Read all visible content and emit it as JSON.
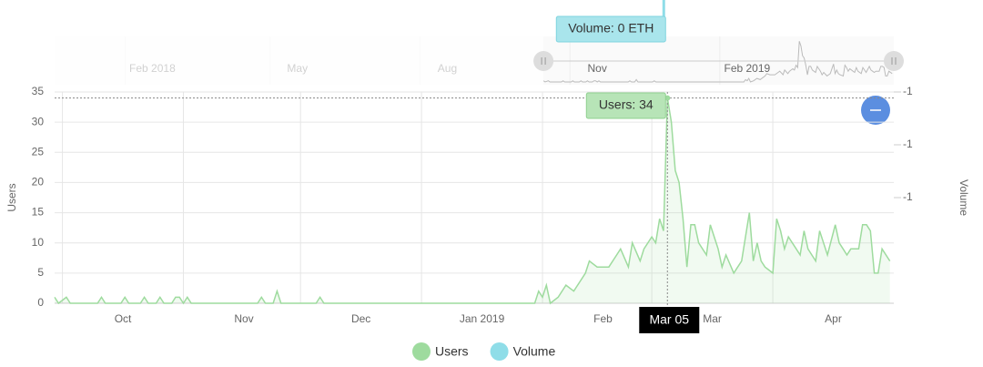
{
  "chart_data": {
    "type": "line",
    "x": [
      -2,
      -1,
      1,
      2,
      9,
      10,
      11,
      15,
      16,
      17,
      20,
      21,
      22,
      24,
      25,
      26,
      28,
      29,
      30,
      31,
      32,
      33,
      50,
      51,
      52,
      54,
      55,
      56,
      65,
      66,
      67,
      121,
      122,
      123,
      124,
      125,
      127,
      129,
      131,
      134,
      135,
      137,
      140,
      142,
      143,
      145,
      146,
      148,
      149,
      151,
      152,
      153,
      154,
      155,
      156,
      157,
      158,
      159,
      160,
      161,
      162,
      163,
      165,
      166,
      167,
      168,
      169,
      170,
      172,
      173,
      174,
      176,
      177,
      178,
      179,
      180,
      182,
      183,
      184,
      185,
      186,
      188,
      189,
      190,
      191,
      193,
      194,
      195,
      196,
      198,
      199,
      200,
      201,
      202,
      204,
      205,
      206,
      207,
      208,
      209,
      210,
      212
    ],
    "series": [
      {
        "name": "Users",
        "color": "#9edb9e",
        "values": [
          1,
          0,
          1,
          0,
          0,
          1,
          0,
          0,
          1,
          0,
          0,
          1,
          0,
          0,
          1,
          0,
          0,
          1,
          1,
          0,
          1,
          0,
          0,
          1,
          0,
          0,
          2,
          0,
          0,
          1,
          0,
          0,
          2,
          1,
          3,
          0,
          1,
          3,
          2,
          5,
          7,
          6,
          6,
          8,
          9,
          6,
          10,
          7,
          9,
          11,
          10,
          14,
          12,
          34,
          30,
          22,
          20,
          14,
          6,
          13,
          13,
          10,
          8,
          13,
          11,
          9,
          6,
          8,
          5,
          6,
          7,
          15,
          7,
          10,
          7,
          6,
          5,
          14,
          12,
          9,
          11,
          9,
          8,
          12,
          9,
          7,
          12,
          10,
          8,
          13,
          10,
          9,
          8,
          9,
          9,
          13,
          13,
          12,
          5,
          5,
          9,
          7
        ]
      },
      {
        "name": "Volume",
        "color": "#8fdde8"
      }
    ],
    "xlim": [
      -2,
      213
    ],
    "xticks": [
      {
        "value": 0,
        "label": "Oct"
      },
      {
        "value": 31,
        "label": "Nov"
      },
      {
        "value": 61,
        "label": "Dec"
      },
      {
        "value": 92,
        "label": "Jan 2019"
      },
      {
        "value": 123,
        "label": "Feb"
      },
      {
        "value": 151,
        "label": "Mar"
      },
      {
        "value": 182,
        "label": "Apr"
      }
    ],
    "ylim": [
      0,
      35
    ],
    "yticks": [
      0,
      5,
      10,
      15,
      20,
      25,
      30,
      35
    ],
    "y2lim": [
      -1.4,
      -0.6
    ],
    "y2ticks": [
      {
        "value": -0.6,
        "label": "-1"
      },
      {
        "value": -0.8,
        "label": "-1"
      },
      {
        "value": -1.0,
        "label": "-1"
      }
    ],
    "ylabel": "Users",
    "y2label": "Volume",
    "grid": true,
    "legend": "bottom",
    "navigator": {
      "xlim": [
        -302,
        213
      ],
      "xticks": [
        {
          "value": -242,
          "label": "Feb 2018"
        },
        {
          "value": -153,
          "label": "May"
        },
        {
          "value": -61,
          "label": "Aug"
        },
        {
          "value": 31,
          "label": "Nov"
        },
        {
          "value": 123,
          "label": "Feb 2019"
        }
      ]
    },
    "tooltips": {
      "crosshair": "Mar 05",
      "users": "Users: 34",
      "volume": "Volume: 0 ETH"
    }
  }
}
